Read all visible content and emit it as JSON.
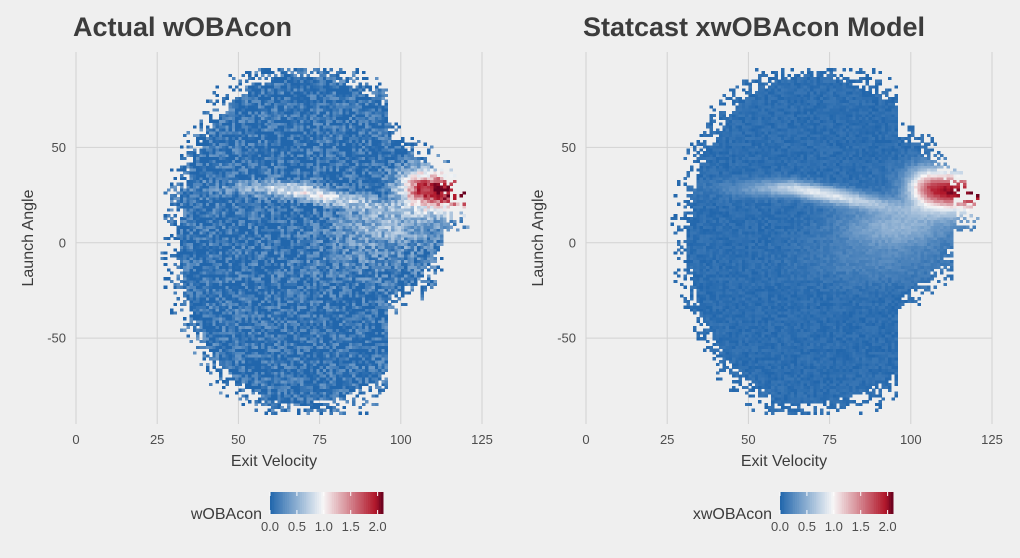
{
  "chart_data": [
    {
      "type": "heatmap",
      "title": "Actual wOBAcon",
      "xlabel": "Exit Velocity",
      "ylabel": "Launch Angle",
      "xlim": [
        0,
        125
      ],
      "ylim": [
        -95,
        100
      ],
      "x_ticks": [
        "0",
        "25",
        "50",
        "75",
        "100",
        "125"
      ],
      "y_ticks": [
        "50",
        "0",
        "-50"
      ],
      "x_tick_values": [
        0,
        25,
        50,
        75,
        100,
        125
      ],
      "y_tick_values": [
        50,
        0,
        -50
      ],
      "colorbar": {
        "label": "wOBAcon",
        "min": 0,
        "max": 2.1,
        "ticks": [
          "0.0",
          "0.5",
          "1.0",
          "1.5",
          "2.0"
        ],
        "tick_values": [
          0,
          0.5,
          1.0,
          1.5,
          2.0
        ]
      },
      "grid": true,
      "legend_position": "bottom",
      "colors": {
        "low": "#2166ac",
        "mid": "#f7f7f7",
        "high": "#b2182b",
        "background": "#efefef",
        "grid": "#d2d2d2"
      },
      "noise": 0.55,
      "seed": 11
    },
    {
      "type": "heatmap",
      "title": "Statcast xwOBAcon Model",
      "xlabel": "Exit Velocity",
      "ylabel": "Launch Angle",
      "xlim": [
        0,
        125
      ],
      "ylim": [
        -95,
        100
      ],
      "x_ticks": [
        "0",
        "25",
        "50",
        "75",
        "100",
        "125"
      ],
      "y_ticks": [
        "50",
        "0",
        "-50"
      ],
      "x_tick_values": [
        0,
        25,
        50,
        75,
        100,
        125
      ],
      "y_tick_values": [
        50,
        0,
        -50
      ],
      "colorbar": {
        "label": "xwOBAcon",
        "min": 0,
        "max": 2.1,
        "ticks": [
          "0.0",
          "0.5",
          "1.0",
          "1.5",
          "2.0"
        ],
        "tick_values": [
          0,
          0.5,
          1.0,
          1.5,
          2.0
        ]
      },
      "grid": true,
      "legend_position": "bottom",
      "colors": {
        "low": "#2166ac",
        "mid": "#f7f7f7",
        "high": "#b2182b",
        "background": "#efefef",
        "grid": "#d2d2d2"
      },
      "noise": 0.12,
      "seed": 29
    }
  ]
}
